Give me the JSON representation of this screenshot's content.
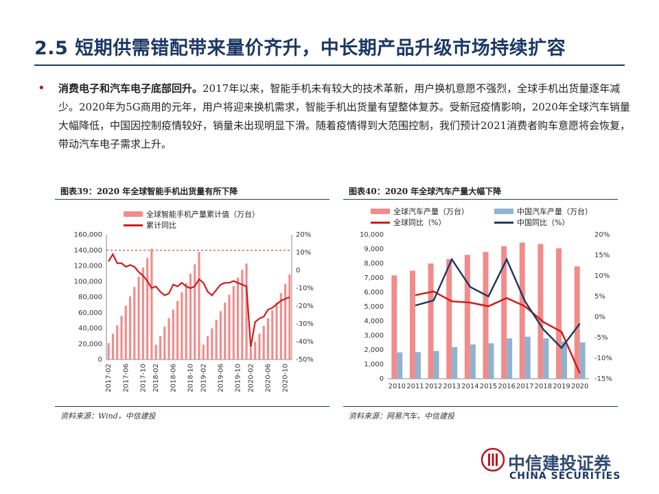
{
  "page": {
    "title": "2.5 短期供需错配带来量价齐升，中长期产品升级市场持续扩容",
    "body_lead": "消费电子和汽车电子底部回升。",
    "body_text": "2017年以来，智能手机未有较大的技术革新，用户换机意愿不强烈，全球手机出货量逐年减少。2020年为5G商用的元年，用户将迎来换机需求，智能手机出货量有望整体复苏。受新冠疫情影响，2020年全球汽车销量大幅降低，中国因控制疫情较好，销量未出现明显下滑。随着疫情得到大范围控制，我们预计2021消费者购车意愿将会恢复，带动汽车电子需求上升。",
    "bullet": "•",
    "logo_cn": "中信建投证券",
    "logo_en": "CHINA SECURITIES",
    "accent_color": "#1b3764",
    "bullet_color": "#c0121b"
  },
  "chart_data": [
    {
      "type": "bar",
      "title": "图表39：2020 年全球智能手机出货量有所下降",
      "source": "资料来源：Wind，中信建投",
      "bar_color": "#f28b8b",
      "line_color": "#d11a1a",
      "legend": [
        "全球智能手机产量累计值（万台）",
        "累计同比"
      ],
      "x_tick_labels": [
        "2017-02",
        "2017-06",
        "2017-10",
        "2018-02",
        "2018-06",
        "2018-10",
        "2019-02",
        "2019-06",
        "2019-10",
        "2020-02",
        "2020-06",
        "2020-10"
      ],
      "y_left_ticks": [
        "0",
        "20,000",
        "40,000",
        "60,000",
        "80,000",
        "100,000",
        "120,000",
        "140,000",
        "160,000"
      ],
      "y_right_ticks": [
        "-50%",
        "-40%",
        "-30%",
        "-20%",
        "-10%",
        "0",
        "10%",
        "20%"
      ],
      "y_left_range": [
        0,
        160000
      ],
      "y_right_range": [
        -50,
        20
      ],
      "grid": "dashed-at-140000",
      "months": [
        "2017-02",
        "2017-03",
        "2017-04",
        "2017-05",
        "2017-06",
        "2017-07",
        "2017-08",
        "2017-09",
        "2017-10",
        "2017-11",
        "2017-12",
        "2018-02",
        "2018-03",
        "2018-04",
        "2018-05",
        "2018-06",
        "2018-07",
        "2018-08",
        "2018-09",
        "2018-10",
        "2018-11",
        "2018-12",
        "2019-02",
        "2019-03",
        "2019-04",
        "2019-05",
        "2019-06",
        "2019-07",
        "2019-08",
        "2019-09",
        "2019-10",
        "2019-11",
        "2019-12",
        "2020-02",
        "2020-03",
        "2020-04",
        "2020-05",
        "2020-06",
        "2020-07",
        "2020-08",
        "2020-09",
        "2020-10",
        "2020-11"
      ],
      "values": [
        21000,
        33000,
        44000,
        56000,
        69000,
        81000,
        93000,
        106000,
        118000,
        130000,
        142000,
        19000,
        30000,
        42000,
        53000,
        64000,
        75000,
        86000,
        98000,
        110000,
        122000,
        138000,
        19000,
        30000,
        40000,
        51000,
        62000,
        73000,
        83000,
        94000,
        105000,
        115000,
        123000,
        15000,
        23000,
        33000,
        43000,
        53000,
        63000,
        73000,
        85000,
        97000,
        109000
      ],
      "yoy": [
        5,
        9,
        4,
        4,
        2,
        3,
        2,
        -1,
        -3,
        -6,
        -10,
        -9,
        -12,
        -14,
        -13,
        -8,
        -9,
        -7,
        -9,
        -10,
        -9,
        -5,
        -7,
        -12,
        -14,
        -11,
        -8,
        -7,
        -7,
        -6,
        -7,
        -8,
        -9,
        -43,
        -29,
        -27,
        -26,
        -22,
        -21,
        -19,
        -17,
        -16,
        -15
      ]
    },
    {
      "type": "bar",
      "title": "图表40：2020 年全球汽车产量大幅下降",
      "source": "资料来源：网易汽车，中信建投",
      "legend": [
        "全球汽车产量（万台）",
        "中国汽车产量（万台）",
        "全球同比（%）",
        "中国同比（%）"
      ],
      "colors": {
        "global_bar": "#f28b8b",
        "china_bar": "#8fb3cf",
        "global_line": "#d11a1a",
        "china_line": "#1f3a5f"
      },
      "categories": [
        "2010",
        "2011",
        "2012",
        "2013",
        "2014",
        "2015",
        "2016",
        "2017",
        "2018",
        "2019",
        "2020"
      ],
      "y_left_ticks": [
        "0",
        "1,000",
        "2,000",
        "3,000",
        "4,000",
        "5,000",
        "6,000",
        "7,000",
        "8,000",
        "9,000",
        "10,000"
      ],
      "y_right_ticks": [
        "-15%",
        "-10%",
        "-5%",
        "0%",
        "5%",
        "10%",
        "15%",
        "20%"
      ],
      "y_left_range": [
        0,
        10000
      ],
      "y_right_range": [
        -15,
        20
      ],
      "series": [
        {
          "name": "全球汽车产量（万台）",
          "axis": "left",
          "values": [
            7170,
            7500,
            8000,
            8300,
            8600,
            8800,
            9200,
            9450,
            9350,
            9050,
            7800
          ]
        },
        {
          "name": "中国汽车产量（万台）",
          "axis": "left",
          "values": [
            1830,
            1850,
            1930,
            2200,
            2380,
            2460,
            2800,
            2920,
            2800,
            2580,
            2520
          ]
        },
        {
          "name": "全球同比（%）",
          "axis": "right",
          "values": [
            null,
            5.3,
            6.2,
            3.8,
            3.5,
            2.6,
            4.6,
            2.6,
            -1.2,
            -3.6,
            -13.7
          ]
        },
        {
          "name": "中国同比（%）",
          "axis": "right",
          "values": [
            null,
            2.8,
            4.0,
            14.0,
            7.3,
            5.0,
            14.0,
            3.8,
            -3.0,
            -7.5,
            -1.6
          ]
        }
      ]
    }
  ]
}
